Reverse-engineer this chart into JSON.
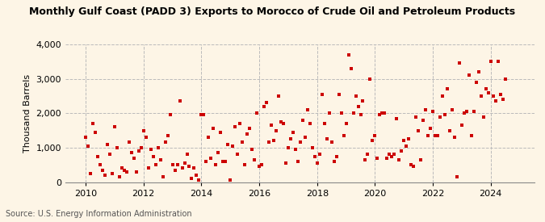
{
  "title": "Monthly Gulf Coast (PADD 3) Exports to Morocco of Crude Oil and Petroleum Products",
  "ylabel": "Thousand Barrels",
  "source": "Source: U.S. Energy Information Administration",
  "background_color": "#fdf5e6",
  "marker_color": "#cc0000",
  "ylim": [
    0,
    4000
  ],
  "yticks": [
    0,
    1000,
    2000,
    3000,
    4000
  ],
  "xticks": [
    2010,
    2012,
    2014,
    2016,
    2018,
    2020,
    2022,
    2024
  ],
  "xlim": [
    2009.3,
    2025.5
  ],
  "data": [
    [
      2010.0,
      1300
    ],
    [
      2010.083,
      1050
    ],
    [
      2010.167,
      250
    ],
    [
      2010.25,
      1700
    ],
    [
      2010.333,
      1450
    ],
    [
      2010.417,
      750
    ],
    [
      2010.5,
      500
    ],
    [
      2010.583,
      350
    ],
    [
      2010.667,
      200
    ],
    [
      2010.75,
      1100
    ],
    [
      2010.833,
      800
    ],
    [
      2010.917,
      250
    ],
    [
      2011.0,
      1600
    ],
    [
      2011.083,
      1000
    ],
    [
      2011.167,
      150
    ],
    [
      2011.25,
      400
    ],
    [
      2011.333,
      350
    ],
    [
      2011.417,
      300
    ],
    [
      2011.5,
      1150
    ],
    [
      2011.583,
      850
    ],
    [
      2011.667,
      700
    ],
    [
      2011.75,
      300
    ],
    [
      2011.833,
      900
    ],
    [
      2011.917,
      1000
    ],
    [
      2012.0,
      1500
    ],
    [
      2012.083,
      1300
    ],
    [
      2012.167,
      400
    ],
    [
      2012.25,
      950
    ],
    [
      2012.333,
      750
    ],
    [
      2012.417,
      500
    ],
    [
      2012.5,
      1000
    ],
    [
      2012.583,
      650
    ],
    [
      2012.667,
      150
    ],
    [
      2012.75,
      1150
    ],
    [
      2012.833,
      1350
    ],
    [
      2012.917,
      1950
    ],
    [
      2013.0,
      500
    ],
    [
      2013.083,
      350
    ],
    [
      2013.167,
      500
    ],
    [
      2013.25,
      2350
    ],
    [
      2013.333,
      400
    ],
    [
      2013.417,
      550
    ],
    [
      2013.5,
      800
    ],
    [
      2013.583,
      450
    ],
    [
      2013.667,
      100
    ],
    [
      2013.75,
      400
    ],
    [
      2013.833,
      200
    ],
    [
      2013.917,
      50
    ],
    [
      2014.0,
      1950
    ],
    [
      2014.083,
      1950
    ],
    [
      2014.167,
      600
    ],
    [
      2014.25,
      1300
    ],
    [
      2014.333,
      700
    ],
    [
      2014.417,
      1550
    ],
    [
      2014.5,
      500
    ],
    [
      2014.583,
      850
    ],
    [
      2014.667,
      1450
    ],
    [
      2014.75,
      600
    ],
    [
      2014.833,
      600
    ],
    [
      2014.917,
      1100
    ],
    [
      2015.0,
      50
    ],
    [
      2015.083,
      1050
    ],
    [
      2015.167,
      1600
    ],
    [
      2015.25,
      800
    ],
    [
      2015.333,
      1700
    ],
    [
      2015.417,
      1150
    ],
    [
      2015.5,
      500
    ],
    [
      2015.583,
      1400
    ],
    [
      2015.667,
      1550
    ],
    [
      2015.75,
      950
    ],
    [
      2015.833,
      650
    ],
    [
      2015.917,
      2000
    ],
    [
      2016.0,
      450
    ],
    [
      2016.083,
      500
    ],
    [
      2016.167,
      2200
    ],
    [
      2016.25,
      2300
    ],
    [
      2016.333,
      1150
    ],
    [
      2016.417,
      1650
    ],
    [
      2016.5,
      1200
    ],
    [
      2016.583,
      1500
    ],
    [
      2016.667,
      2500
    ],
    [
      2016.75,
      1750
    ],
    [
      2016.833,
      1700
    ],
    [
      2016.917,
      550
    ],
    [
      2017.0,
      1000
    ],
    [
      2017.083,
      1250
    ],
    [
      2017.167,
      1450
    ],
    [
      2017.25,
      950
    ],
    [
      2017.333,
      600
    ],
    [
      2017.417,
      1150
    ],
    [
      2017.5,
      1800
    ],
    [
      2017.583,
      1300
    ],
    [
      2017.667,
      2100
    ],
    [
      2017.75,
      1700
    ],
    [
      2017.833,
      1000
    ],
    [
      2017.917,
      750
    ],
    [
      2018.0,
      550
    ],
    [
      2018.083,
      800
    ],
    [
      2018.167,
      2550
    ],
    [
      2018.25,
      1700
    ],
    [
      2018.333,
      1250
    ],
    [
      2018.417,
      2000
    ],
    [
      2018.5,
      1150
    ],
    [
      2018.583,
      600
    ],
    [
      2018.667,
      750
    ],
    [
      2018.75,
      2550
    ],
    [
      2018.833,
      2000
    ],
    [
      2018.917,
      1350
    ],
    [
      2019.0,
      1700
    ],
    [
      2019.083,
      3700
    ],
    [
      2019.167,
      3300
    ],
    [
      2019.25,
      2000
    ],
    [
      2019.333,
      2500
    ],
    [
      2019.417,
      2200
    ],
    [
      2019.5,
      1950
    ],
    [
      2019.583,
      2350
    ],
    [
      2019.667,
      650
    ],
    [
      2019.75,
      800
    ],
    [
      2019.833,
      3000
    ],
    [
      2019.917,
      1200
    ],
    [
      2020.0,
      1350
    ],
    [
      2020.083,
      700
    ],
    [
      2020.167,
      1950
    ],
    [
      2020.25,
      2000
    ],
    [
      2020.333,
      2000
    ],
    [
      2020.417,
      700
    ],
    [
      2020.5,
      800
    ],
    [
      2020.583,
      750
    ],
    [
      2020.667,
      800
    ],
    [
      2020.75,
      1850
    ],
    [
      2020.833,
      650
    ],
    [
      2020.917,
      900
    ],
    [
      2021.0,
      1200
    ],
    [
      2021.083,
      1050
    ],
    [
      2021.167,
      1250
    ],
    [
      2021.25,
      500
    ],
    [
      2021.333,
      450
    ],
    [
      2021.417,
      1900
    ],
    [
      2021.5,
      1500
    ],
    [
      2021.583,
      650
    ],
    [
      2021.667,
      1800
    ],
    [
      2021.75,
      2100
    ],
    [
      2021.833,
      1350
    ],
    [
      2021.917,
      1550
    ],
    [
      2022.0,
      2050
    ],
    [
      2022.083,
      1350
    ],
    [
      2022.167,
      1350
    ],
    [
      2022.25,
      1900
    ],
    [
      2022.333,
      2500
    ],
    [
      2022.417,
      1950
    ],
    [
      2022.5,
      2700
    ],
    [
      2022.583,
      1500
    ],
    [
      2022.667,
      2100
    ],
    [
      2022.75,
      1300
    ],
    [
      2022.833,
      150
    ],
    [
      2022.917,
      3450
    ],
    [
      2023.0,
      1650
    ],
    [
      2023.083,
      2000
    ],
    [
      2023.167,
      2050
    ],
    [
      2023.25,
      3100
    ],
    [
      2023.333,
      1350
    ],
    [
      2023.417,
      2050
    ],
    [
      2023.5,
      2900
    ],
    [
      2023.583,
      3200
    ],
    [
      2023.667,
      2500
    ],
    [
      2023.75,
      1900
    ],
    [
      2023.833,
      2700
    ],
    [
      2023.917,
      2600
    ],
    [
      2024.0,
      3500
    ],
    [
      2024.083,
      2500
    ],
    [
      2024.167,
      2350
    ],
    [
      2024.25,
      3500
    ],
    [
      2024.333,
      2550
    ],
    [
      2024.417,
      2400
    ],
    [
      2024.5,
      3000
    ]
  ]
}
